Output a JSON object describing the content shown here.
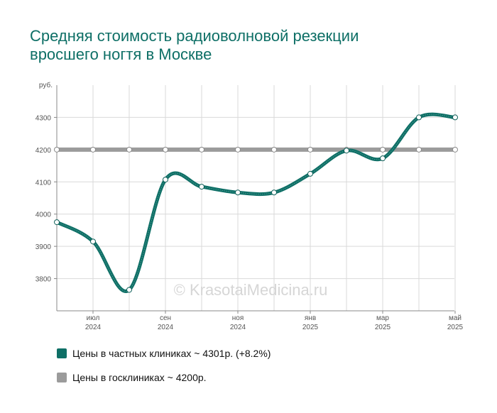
{
  "title_lines": [
    "Средняя стоимость радиоволновой резекции",
    "вросшего ногтя в Москве"
  ],
  "watermark": "© KrasotaiMedicina.ru",
  "colors": {
    "private": "#0e6f66",
    "public": "#9b9b9b",
    "grid": "#d9d9d9",
    "axis": "#888888"
  },
  "chart_data": {
    "type": "line",
    "title": "Средняя стоимость радиоволновой резекции вросшего ногтя в Москве",
    "ylabel": "руб.",
    "ylim": [
      3700,
      4400
    ],
    "y_ticks": [
      3800,
      3900,
      4000,
      4100,
      4200,
      4300
    ],
    "x_ticks": [
      {
        "month": "июл",
        "year": "2024"
      },
      {
        "month": "сен",
        "year": "2024"
      },
      {
        "month": "ноя",
        "year": "2024"
      },
      {
        "month": "янв",
        "year": "2025"
      },
      {
        "month": "мар",
        "year": "2025"
      },
      {
        "month": "май",
        "year": "2025"
      }
    ],
    "x": [
      "2024-06",
      "2024-07",
      "2024-08",
      "2024-09",
      "2024-10",
      "2024-11",
      "2024-12",
      "2025-01",
      "2025-02",
      "2025-03",
      "2025-04",
      "2025-05"
    ],
    "series": [
      {
        "name": "Цены в частных клиниках",
        "legend": "Цены в частных клиниках ~ 4301р. (+8.2%)",
        "values": [
          3975,
          3915,
          3765,
          4107,
          4085,
          4067,
          4067,
          4125,
          4197,
          4173,
          4300,
          4300
        ]
      },
      {
        "name": "Цены в госклиниках",
        "legend": "Цены в госклиниках ~ 4200р.",
        "values": [
          4200,
          4200,
          4200,
          4200,
          4200,
          4200,
          4200,
          4200,
          4200,
          4200,
          4200,
          4200
        ]
      }
    ],
    "grid": true,
    "legend_position": "bottom-left"
  }
}
